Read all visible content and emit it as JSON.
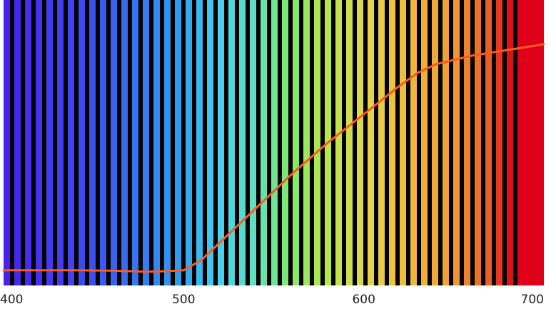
{
  "chart_data": {
    "type": "line",
    "x": [
      400,
      420,
      440,
      460,
      480,
      490,
      500,
      510,
      520,
      540,
      560,
      580,
      600,
      620,
      630,
      640,
      660,
      680,
      700
    ],
    "values": [
      5.3,
      5.3,
      5.3,
      5.2,
      4.8,
      5.0,
      5.3,
      9,
      15,
      27,
      39,
      50,
      60,
      70,
      74.5,
      77.5,
      80.5,
      82.5,
      84.5
    ],
    "color": "#ff5a1e",
    "xlim": [
      400,
      700
    ],
    "xticks": [
      400,
      500,
      600,
      700
    ],
    "ylim": [
      0,
      100
    ]
  }
}
